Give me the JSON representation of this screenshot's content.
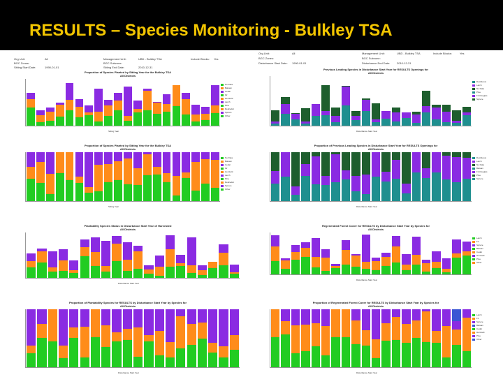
{
  "slide": {
    "title": "RESULTS – Species Monitoring - Bulkley TSA"
  },
  "colors": {
    "header_bg": "#000000",
    "title": "#f2c500",
    "purple": "#8a2be2",
    "orange": "#ff8c1a",
    "green": "#22cc22",
    "teal": "#1f8f8f",
    "darkgreen": "#1e5e2e",
    "blue": "#3a56d4",
    "yellow": "#e8e000",
    "gray": "#888888"
  },
  "panels": {
    "p1": {
      "title": "Proportion of Species Planted by Sitting Year for the Bulkley TSA",
      "subtitle": "All Districts"
    },
    "p2": {
      "title": "Previous Leading Species in Disturbance Start Year for RESULTS Openings for",
      "subtitle": "All Districts"
    },
    "p3": {
      "title": "Proportion of Previous Leading Species in Disturbance Start Year for RESULTS Openings for",
      "subtitle": "All Districts"
    },
    "p4": {
      "title": "Regenerated Forest Cover for RESULTS by Disturbance Start Year by Species for",
      "subtitle": "All Districts"
    },
    "p5": {
      "title": "Plantability Species Status in Disturbance Start Year of Harvested",
      "subtitle": "All Districts"
    },
    "p6": {
      "title": "Proportion of Regenerated Forest Cover for RESULTS by Disturbance Start Year by Species for",
      "subtitle": "All Districts"
    },
    "p7": {
      "title": "Proportion of Plantability Species for RESULTS by Disturbance Start Year by Species for",
      "subtitle": "All Districts"
    }
  },
  "meta_left": {
    "row1a": "Org Unit:",
    "row1b": "All",
    "row1c": "Management Unit:",
    "row1d": "UBD - Bulkley TSA",
    "row1e": "Include Blocks:",
    "row1f": "Yes",
    "row2a": "BGC Zones:",
    "row2c": "BGC Subzone:",
    "row3a": "Sitting Start Date:",
    "row3b": "1990-01-01",
    "row3c": "Sitting End Date:",
    "row3d": "2010-12-31"
  },
  "meta_right": {
    "row1a": "Org Unit:",
    "row1b": "All",
    "row1c": "Management Unit:",
    "row1d": "UBD - Bulkley TSA",
    "row1e": "Include Blocks:",
    "row1f": "Yes",
    "row2a": "BGC Zones:",
    "row2c": "BGC Subzone:",
    "row3a": "Disturbance Start Date:",
    "row3b": "1990-01-01",
    "row3c": "Disturbance End Date:",
    "row3d": "2010-12-31"
  },
  "legends": {
    "l1": [
      "No Data",
      "Balsam",
      "Cedar",
      "Fir",
      "Hemlock",
      "Larch",
      "Pine",
      "Redcedar",
      "Spruce",
      "Other"
    ],
    "l2": [
      "Deciduous",
      "Larch",
      "No Data",
      "Pine",
      "Fir-Douglas",
      "Spruce"
    ],
    "l3": [
      "Deciduous",
      "Larch",
      "No Data",
      "Balsam",
      "Fir-Douglas",
      "Pine",
      "Spruce"
    ],
    "l4": [
      "Larch",
      "Fir",
      "Spruce",
      "Balsam",
      "Cedar",
      "Hemlock",
      "Pine",
      "Other"
    ]
  },
  "axes": {
    "sitting_year": "Sitting Year",
    "disturbance_year": "Disturbance Start Year",
    "years": [
      "1990",
      "1991",
      "1992",
      "1993",
      "1994",
      "1995",
      "1996",
      "1997",
      "1998",
      "1999",
      "2000",
      "2001",
      "2002",
      "2003",
      "2004",
      "2005",
      "2006",
      "2007",
      "2008",
      "2009"
    ]
  }
}
